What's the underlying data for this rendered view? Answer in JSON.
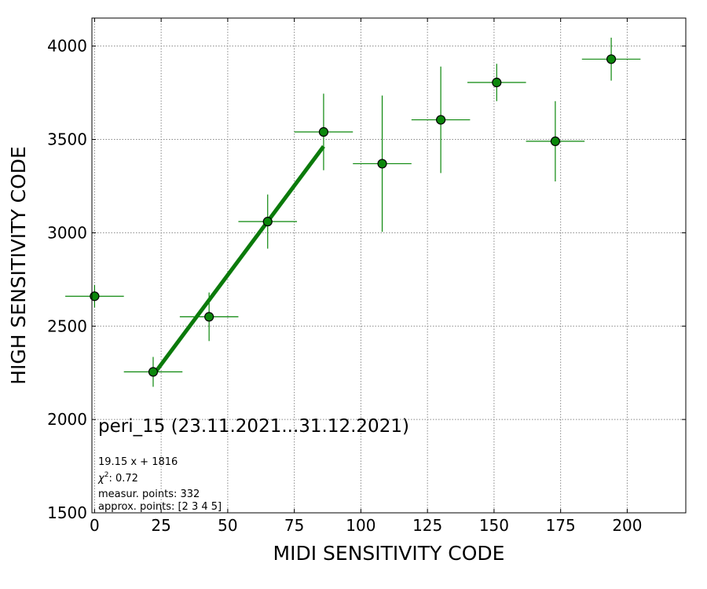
{
  "chart_data": {
    "type": "scatter",
    "title": "",
    "xlabel": "MIDI SENSITIVITY CODE",
    "ylabel": "HIGH SENSITIVITY CODE",
    "xlim": [
      -1,
      222
    ],
    "ylim": [
      1500,
      4150
    ],
    "x_ticks": [
      0,
      25,
      50,
      75,
      100,
      125,
      150,
      175,
      200
    ],
    "y_ticks": [
      1500,
      2000,
      2500,
      3000,
      3500,
      4000
    ],
    "grid": true,
    "colors": {
      "points": "#0b870b",
      "fit": "#0b7a0b"
    },
    "points": [
      {
        "x": 0,
        "y": 2660,
        "xerr": 11,
        "yerr": 60
      },
      {
        "x": 22,
        "y": 2255,
        "xerr": 11,
        "yerr": 80
      },
      {
        "x": 43,
        "y": 2550,
        "xerr": 11,
        "yerr": 130
      },
      {
        "x": 65,
        "y": 3060,
        "xerr": 11,
        "yerr": 145
      },
      {
        "x": 86,
        "y": 3540,
        "xerr": 11,
        "yerr": 205
      },
      {
        "x": 108,
        "y": 3370,
        "xerr": 11,
        "yerr": 365
      },
      {
        "x": 130,
        "y": 3605,
        "xerr": 11,
        "yerr": 285
      },
      {
        "x": 151,
        "y": 3805,
        "xerr": 11,
        "yerr": 100
      },
      {
        "x": 173,
        "y": 3490,
        "xerr": 11,
        "yerr": 215
      },
      {
        "x": 194,
        "y": 3930,
        "xerr": 11,
        "yerr": 115
      }
    ],
    "fit": {
      "slope": 19.15,
      "intercept": 1816,
      "x_range": [
        22,
        86
      ]
    },
    "annotation": {
      "title": "peri_15 (23.11.2021...31.12.2021)",
      "equation": "19.15 x + 1816",
      "chi2_label": "χ",
      "chi2_sup": "2",
      "chi2_value": ": 0.72",
      "measur_points": "measur. points: 332",
      "approx_points": "approx. points: [2 3 4 5]"
    }
  }
}
